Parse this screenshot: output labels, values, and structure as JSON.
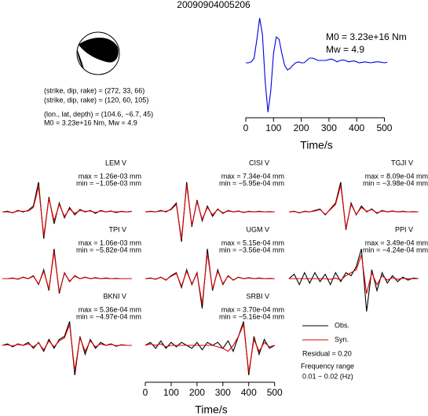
{
  "title": "20090904005206",
  "source_info": [
    "(strike, dip, rake) = (272, 33, 66)",
    "(strike, dip, rake) = (120, 60, 105)",
    "(lon., lat, depth) = (104.6, −6.7, 45)",
    "M0 = 3.23e+16 Nm, Mw = 4.9"
  ],
  "residual": "Residual = 0.20",
  "frequency_range": [
    "Frequency range",
    "0.01 − 0.02 (Hz)"
  ],
  "chart_data": [
    {
      "type": "line",
      "annotations": [
        "M0 = 3.23e+16 Nm",
        "Mw = 4.9"
      ],
      "xlabel": "Time/s",
      "xlim": [
        0,
        510
      ],
      "xticks": [
        0,
        100,
        200,
        300,
        400,
        500
      ],
      "x": [
        0,
        10,
        20,
        30,
        40,
        50,
        60,
        70,
        80,
        90,
        100,
        110,
        120,
        130,
        140,
        150,
        160,
        170,
        180,
        190,
        200,
        210,
        220,
        230,
        240,
        250,
        260,
        270,
        280,
        290,
        300,
        310,
        320,
        330,
        340,
        350,
        360,
        370,
        380,
        390,
        400,
        410,
        420,
        430,
        440,
        450,
        460,
        470,
        480,
        490,
        500,
        510
      ],
      "series": [
        {
          "color": "#0000e0",
          "values": [
            0,
            0,
            0.02,
            0.1,
            0.5,
            0.95,
            0.6,
            -0.4,
            -1.05,
            -0.6,
            0.2,
            0.55,
            0.5,
            0.2,
            -0.05,
            -0.15,
            -0.12,
            -0.05,
            0,
            0.02,
            0,
            0,
            0.05,
            0.1,
            0.1,
            0.08,
            0.05,
            0.05,
            0.05,
            0.05,
            0.07,
            0.08,
            0.05,
            0.02,
            0.05,
            0.06,
            0.05,
            0.02,
            0.03,
            0.04,
            0.02,
            0,
            0.01,
            0.02,
            0.01,
            0,
            0.01,
            0.02,
            0.02,
            0.01,
            0,
            0.01
          ]
        }
      ]
    },
    {
      "type": "waveform",
      "station": "LEM V",
      "max_label": "max = 1.26e-03 mm",
      "min_label": "min = −1.05e-03 mm",
      "x": [
        0,
        20,
        40,
        60,
        80,
        100,
        120,
        140,
        160,
        180,
        200,
        220,
        240,
        260,
        280,
        300,
        320,
        340,
        360,
        380,
        400,
        420,
        440,
        460,
        480,
        500
      ],
      "series": [
        {
          "name": "Obs.",
          "color": "#000000",
          "values": [
            0,
            0.02,
            -0.03,
            0.05,
            0,
            0.05,
            0.2,
            1,
            -0.9,
            0.5,
            -0.4,
            0.3,
            -0.2,
            0.15,
            -0.1,
            0.08,
            0,
            0.05,
            -0.05,
            0.05,
            0,
            0.03,
            -0.02,
            0.02,
            0,
            0.02
          ]
        },
        {
          "name": "Syn.",
          "color": "#e00000",
          "values": [
            0,
            0,
            -0.02,
            0.03,
            0.02,
            0.03,
            0.15,
            0.85,
            -0.8,
            0.45,
            -0.3,
            0.25,
            -0.15,
            0.1,
            -0.05,
            0.05,
            0.02,
            0.03,
            -0.02,
            0.03,
            0,
            0.02,
            0,
            0.01,
            0,
            0.01
          ]
        }
      ]
    },
    {
      "type": "waveform",
      "station": "CISI V",
      "max_label": "max = 7.34e-04 mm",
      "min_label": "min = −5.95e-04 mm",
      "x": [
        0,
        20,
        40,
        60,
        80,
        100,
        120,
        140,
        160,
        180,
        200,
        220,
        240,
        260,
        280,
        300,
        320,
        340,
        360,
        380,
        400,
        420,
        440,
        460,
        480,
        500
      ],
      "series": [
        {
          "name": "Obs.",
          "color": "#000000",
          "values": [
            0,
            0.02,
            0,
            0.05,
            0,
            0.1,
            0.3,
            -1,
            1,
            -0.5,
            0.4,
            -0.3,
            0.2,
            -0.15,
            0.1,
            -0.05,
            0.05,
            0,
            0.03,
            -0.02,
            0.02,
            0,
            0.02,
            0,
            0.01,
            0
          ]
        },
        {
          "name": "Syn.",
          "color": "#e00000",
          "values": [
            0,
            0.01,
            0,
            0.03,
            0.02,
            0.08,
            0.25,
            -0.9,
            0.9,
            -0.45,
            0.35,
            -0.25,
            0.15,
            -0.1,
            0.08,
            -0.03,
            0.03,
            0,
            0.02,
            -0.01,
            0.01,
            0,
            0.01,
            0,
            0,
            0
          ]
        }
      ]
    },
    {
      "type": "waveform",
      "station": "TGJI V",
      "max_label": "max = 8.09e-04 mm",
      "min_label": "min = −3.98e-04 mm",
      "x": [
        0,
        20,
        40,
        60,
        80,
        100,
        120,
        140,
        160,
        180,
        200,
        220,
        240,
        260,
        280,
        300,
        320,
        340,
        360,
        380,
        400,
        420,
        440,
        460,
        480,
        500
      ],
      "series": [
        {
          "name": "Obs.",
          "color": "#000000",
          "values": [
            0,
            0.02,
            -0.03,
            0.02,
            0,
            0.05,
            0.1,
            -0.1,
            0.1,
            0.3,
            1,
            -0.6,
            0.3,
            -0.1,
            0.2,
            0,
            0.1,
            -0.05,
            0.05,
            0,
            0.03,
            0,
            0.02,
            0,
            0.01,
            0
          ]
        },
        {
          "name": "Syn.",
          "color": "#e00000",
          "values": [
            0,
            0.01,
            -0.02,
            0.01,
            0,
            0.03,
            0.08,
            -0.08,
            0.08,
            0.25,
            0.9,
            -0.55,
            0.25,
            -0.08,
            0.15,
            0.02,
            0.08,
            -0.03,
            0.03,
            0,
            0.02,
            0,
            0.01,
            0,
            0,
            0
          ]
        }
      ]
    },
    {
      "type": "waveform",
      "station": "TPI V",
      "max_label": "max = 1.06e-03 mm",
      "min_label": "min = −5.82e-04 mm",
      "x": [
        0,
        20,
        40,
        60,
        80,
        100,
        120,
        140,
        160,
        180,
        200,
        220,
        240,
        260,
        280,
        300,
        320,
        340,
        360,
        380,
        400,
        420,
        440,
        460,
        480,
        500
      ],
      "series": [
        {
          "name": "Obs.",
          "color": "#000000",
          "values": [
            0,
            0,
            0.02,
            -0.02,
            0.05,
            0,
            0.1,
            -0.2,
            0.3,
            -0.4,
            1,
            -0.5,
            0.2,
            -0.1,
            0.1,
            0,
            0.05,
            0,
            0.03,
            0,
            0.02,
            0,
            0.01,
            0,
            0,
            0
          ]
        },
        {
          "name": "Syn.",
          "color": "#e00000",
          "values": [
            0,
            0,
            0.01,
            -0.01,
            0.04,
            0,
            0.08,
            -0.18,
            0.25,
            -0.35,
            0.9,
            -0.45,
            0.18,
            -0.08,
            0.08,
            0,
            0.04,
            0,
            0.02,
            0,
            0.01,
            0,
            0,
            0,
            0,
            0
          ]
        }
      ]
    },
    {
      "type": "waveform",
      "station": "UGM V",
      "max_label": "max = 5.15e-04 mm",
      "min_label": "min = −3.56e-04 mm",
      "x": [
        0,
        20,
        40,
        60,
        80,
        100,
        120,
        140,
        160,
        180,
        200,
        220,
        240,
        260,
        280,
        300,
        320,
        340,
        360,
        380,
        400,
        420,
        440,
        460,
        480,
        500
      ],
      "series": [
        {
          "name": "Obs.",
          "color": "#000000",
          "values": [
            0,
            0.02,
            -0.02,
            0.05,
            -0.05,
            0.1,
            0.2,
            -0.3,
            0.3,
            -0.2,
            0.2,
            -1,
            1,
            -0.4,
            0.3,
            -0.2,
            0.1,
            -0.05,
            0.05,
            0,
            0.03,
            0,
            0.02,
            0,
            0.01,
            0
          ]
        },
        {
          "name": "Syn.",
          "color": "#e00000",
          "values": [
            0,
            0.01,
            -0.01,
            0.04,
            -0.04,
            0.08,
            0.17,
            -0.25,
            0.25,
            -0.17,
            0.17,
            -0.85,
            0.85,
            -0.35,
            0.25,
            -0.17,
            0.08,
            -0.04,
            0.04,
            0,
            0.02,
            0,
            0.01,
            0,
            0,
            0
          ]
        }
      ]
    },
    {
      "type": "waveform",
      "station": "PPI V",
      "max_label": "max = 3.49e-04 mm",
      "min_label": "min = −4.24e-04 mm",
      "x": [
        0,
        20,
        40,
        60,
        80,
        100,
        120,
        140,
        160,
        180,
        200,
        220,
        240,
        260,
        280,
        300,
        320,
        340,
        360,
        380,
        400,
        420,
        440,
        460,
        480,
        500
      ],
      "series": [
        {
          "name": "Obs.",
          "color": "#000000",
          "values": [
            0,
            0.15,
            -0.2,
            0.2,
            -0.15,
            0.2,
            -0.1,
            0.15,
            -0.2,
            0.2,
            -0.1,
            0.2,
            0.1,
            0.4,
            1,
            -1.1,
            0.3,
            -0.4,
            0.2,
            -0.15,
            0.1,
            -0.1,
            0.05,
            -0.05,
            0.02,
            0
          ]
        },
        {
          "name": "Syn.",
          "color": "#e00000",
          "values": [
            0,
            0,
            0,
            0,
            0,
            0,
            0,
            0,
            -0.02,
            0.02,
            -0.05,
            0.1,
            0.2,
            0.3,
            0.8,
            -0.5,
            0.2,
            -0.2,
            0.1,
            -0.05,
            0.03,
            -0.02,
            0.01,
            0,
            0,
            0
          ]
        }
      ]
    },
    {
      "type": "waveform",
      "station": "BKNI V",
      "max_label": "max = 5.36e-04 mm",
      "min_label": "min = −4.97e-04 mm",
      "x": [
        0,
        20,
        40,
        60,
        80,
        100,
        120,
        140,
        160,
        180,
        200,
        220,
        240,
        260,
        280,
        300,
        320,
        340,
        360,
        380,
        400,
        420,
        440,
        460,
        480,
        500
      ],
      "series": [
        {
          "name": "Obs.",
          "color": "#000000",
          "values": [
            0,
            0.05,
            -0.05,
            0.05,
            0,
            0.1,
            -0.1,
            0.1,
            -0.2,
            0.2,
            -0.1,
            0.2,
            0.3,
            0.8,
            -1,
            0.3,
            -0.3,
            0.2,
            -0.1,
            0.1,
            0,
            0.05,
            -0.03,
            0.02,
            0,
            0
          ]
        },
        {
          "name": "Syn.",
          "color": "#e00000",
          "values": [
            0,
            0.02,
            -0.02,
            0.03,
            0,
            0.05,
            -0.05,
            0.08,
            -0.15,
            0.15,
            -0.05,
            0.15,
            0.25,
            0.7,
            -0.85,
            0.25,
            -0.2,
            0.15,
            -0.05,
            0.05,
            0,
            0.03,
            -0.01,
            0.01,
            0,
            0
          ]
        }
      ]
    },
    {
      "type": "waveform",
      "station": "SRBI V",
      "max_label": "max = 3.70e-04 mm",
      "min_label": "min = −5.16e-04 mm",
      "xlabel": "Time/s",
      "xlim": [
        0,
        510
      ],
      "xticks": [
        0,
        100,
        200,
        300,
        400,
        500
      ],
      "x": [
        0,
        20,
        40,
        60,
        80,
        100,
        120,
        140,
        160,
        180,
        200,
        220,
        240,
        260,
        280,
        300,
        320,
        340,
        360,
        380,
        400,
        420,
        440,
        460,
        480,
        500
      ],
      "series": [
        {
          "name": "Obs.",
          "color": "#000000",
          "values": [
            0,
            0.1,
            -0.1,
            0.15,
            -0.1,
            0.1,
            -0.05,
            0.1,
            0,
            -0.1,
            0.1,
            -0.15,
            0.1,
            0,
            0.1,
            -0.1,
            0.15,
            -0.2,
            0.3,
            0.8,
            -1,
            0.3,
            -0.3,
            0.2,
            -0.1,
            0
          ]
        },
        {
          "name": "Syn.",
          "color": "#e00000",
          "values": [
            0,
            0.05,
            0,
            0.05,
            -0.05,
            0,
            0,
            0,
            0,
            0,
            0,
            0,
            0,
            0,
            -0.05,
            -0.1,
            -0.2,
            0,
            0.3,
            0.7,
            -0.9,
            0.2,
            -0.2,
            0.1,
            -0.05,
            0
          ]
        }
      ]
    }
  ]
}
